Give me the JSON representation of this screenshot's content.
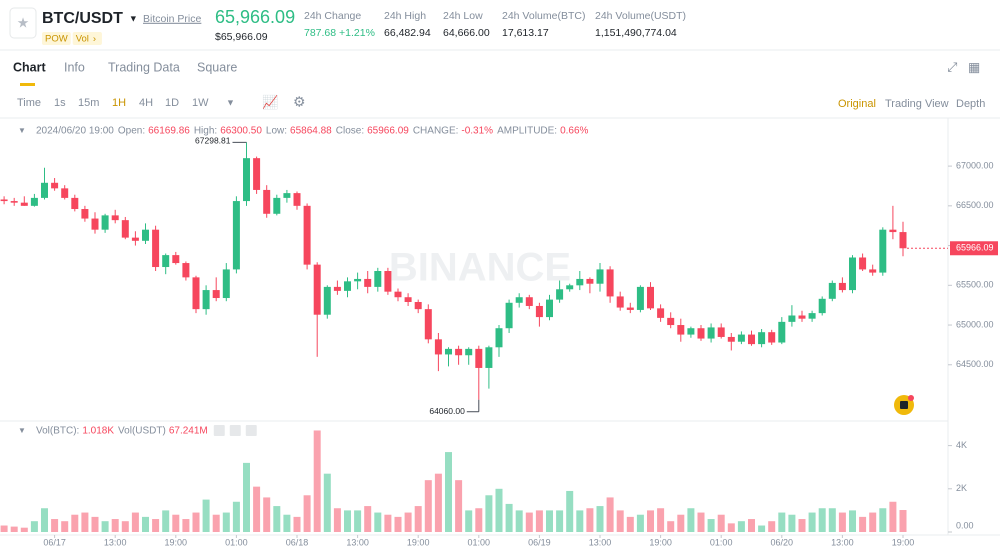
{
  "header": {
    "symbol": "BTC/USDT",
    "link": "Bitcoin Price",
    "price": "65,966.09",
    "price_usd": "$65,966.09",
    "tags": [
      "POW",
      "Vol"
    ],
    "stats": [
      {
        "label": "24h Change",
        "value": "787.68 +1.21%"
      },
      {
        "label": "24h High",
        "value": "66,482.94"
      },
      {
        "label": "24h Low",
        "value": "64,666.00"
      },
      {
        "label": "24h Volume(BTC)",
        "value": "17,613.17"
      },
      {
        "label": "24h Volume(USDT)",
        "value": "1,151,490,774.04"
      }
    ]
  },
  "tabs": [
    "Chart",
    "Info",
    "Trading Data",
    "Square"
  ],
  "toolbar": {
    "intervals": [
      "Time",
      "1s",
      "15m",
      "1H",
      "4H",
      "1D",
      "1W"
    ],
    "views": [
      "Original",
      "Trading View",
      "Depth"
    ]
  },
  "chart_data": {
    "type": "candlestick",
    "watermark": "BINANCE",
    "info": {
      "time": "2024/06/20 19:00",
      "items": [
        {
          "label": "Open:",
          "value": "66169.86"
        },
        {
          "label": "High:",
          "value": "66300.50"
        },
        {
          "label": "Low:",
          "value": "65864.88"
        },
        {
          "label": "Close:",
          "value": "65966.09"
        },
        {
          "label": "CHANGE:",
          "value": "-0.31%"
        },
        {
          "label": "AMPLITUDE:",
          "value": "0.66%"
        }
      ]
    },
    "volume_info": [
      {
        "label": "Vol(BTC):",
        "value": "1.018K"
      },
      {
        "label": "Vol(USDT)",
        "value": "67.241M"
      }
    ],
    "high_label": "67298.81",
    "low_label": "64060.00",
    "up_color": "#2ebd85",
    "down_color": "#f6465d",
    "open": [
      66580,
      66560,
      66540,
      66500,
      66600,
      66790,
      66720,
      66600,
      66460,
      66340,
      66200,
      66380,
      66320,
      66100,
      66060,
      66200,
      65730,
      65880,
      65780,
      65600,
      65200,
      65440,
      65340,
      65700,
      66560,
      67100,
      66700,
      66400,
      66600,
      66660,
      66500,
      65760,
      65130,
      65480,
      65430,
      65550,
      65580,
      65480,
      65680,
      65420,
      65350,
      65290,
      65200,
      64820,
      64630,
      64700,
      64620,
      64700,
      64460,
      64720,
      64960,
      65280,
      65350,
      65240,
      65100,
      65320,
      65450,
      65500,
      65580,
      65520,
      65700,
      65360,
      65220,
      65190,
      65480,
      65210,
      65090,
      65000,
      64880,
      64960,
      64830,
      64970,
      64850,
      64790,
      64880,
      64760,
      64910,
      64780,
      65040,
      65120,
      65080,
      65150,
      65330,
      65530,
      65440,
      65850,
      65700,
      65660,
      66200,
      66169.86
    ],
    "high": [
      66620,
      66600,
      66620,
      66650,
      66980,
      66850,
      66760,
      66640,
      66500,
      66420,
      66400,
      66450,
      66360,
      66180,
      66280,
      66250,
      65900,
      65920,
      65800,
      65620,
      65500,
      65600,
      65780,
      66620,
      67298.81,
      67120,
      66760,
      66640,
      66700,
      66680,
      66530,
      65790,
      65500,
      65560,
      65600,
      65660,
      65680,
      65720,
      65720,
      65460,
      65400,
      65320,
      65260,
      64900,
      64720,
      64740,
      64720,
      64740,
      64740,
      65000,
      65320,
      65400,
      65380,
      65280,
      65380,
      65560,
      65520,
      65680,
      65600,
      65780,
      65740,
      65420,
      65280,
      65500,
      65540,
      65260,
      65160,
      65080,
      64980,
      65000,
      65020,
      65020,
      64900,
      64920,
      64930,
      64950,
      64940,
      65100,
      65250,
      65180,
      65180,
      65360,
      65560,
      65600,
      65880,
      65900,
      65760,
      66230,
      66500,
      66300.5
    ],
    "low": [
      66520,
      66500,
      66500,
      66490,
      66580,
      66690,
      66580,
      66430,
      66300,
      66150,
      66160,
      66280,
      66080,
      66000,
      66020,
      65680,
      65640,
      65760,
      65560,
      65150,
      65130,
      65300,
      65300,
      65650,
      66500,
      66650,
      66350,
      66380,
      66540,
      66450,
      65700,
      64600,
      65080,
      65380,
      65350,
      65450,
      65400,
      65420,
      65380,
      65300,
      65240,
      65150,
      64770,
      64420,
      64480,
      64500,
      64500,
      64060,
      64200,
      64600,
      64900,
      65220,
      65200,
      64980,
      65060,
      65280,
      65420,
      65440,
      65400,
      65420,
      65280,
      65180,
      65150,
      65160,
      65190,
      65040,
      64960,
      64790,
      64840,
      64800,
      64780,
      64830,
      64680,
      64760,
      64740,
      64720,
      64750,
      64760,
      64980,
      65040,
      65040,
      65120,
      65300,
      65410,
      65400,
      65680,
      65620,
      65620,
      66080,
      65864.88
    ],
    "close": [
      66560,
      66540,
      66500,
      66600,
      66790,
      66720,
      66600,
      66460,
      66340,
      66200,
      66380,
      66320,
      66100,
      66060,
      66200,
      65730,
      65880,
      65780,
      65600,
      65200,
      65440,
      65340,
      65700,
      66560,
      67100,
      66700,
      66400,
      66600,
      66660,
      66500,
      65760,
      65130,
      65480,
      65430,
      65550,
      65580,
      65480,
      65680,
      65420,
      65350,
      65290,
      65200,
      64820,
      64630,
      64700,
      64620,
      64700,
      64460,
      64720,
      64960,
      65280,
      65350,
      65240,
      65100,
      65320,
      65450,
      65500,
      65580,
      65520,
      65700,
      65360,
      65220,
      65190,
      65480,
      65210,
      65090,
      65000,
      64880,
      64960,
      64830,
      64970,
      64850,
      64790,
      64880,
      64760,
      64910,
      64780,
      65040,
      65120,
      65080,
      65150,
      65330,
      65530,
      65440,
      65850,
      65700,
      65660,
      66200,
      66169.86,
      65966.09
    ],
    "volume": [
      300,
      250,
      200,
      500,
      1100,
      600,
      500,
      800,
      900,
      700,
      500,
      600,
      500,
      900,
      700,
      600,
      1000,
      800,
      600,
      900,
      1500,
      800,
      900,
      1400,
      3200,
      2100,
      1600,
      1200,
      800,
      700,
      1700,
      4700,
      2700,
      1100,
      1000,
      1000,
      1200,
      900,
      800,
      700,
      900,
      1200,
      2400,
      2700,
      3700,
      2400,
      1000,
      1100,
      1700,
      2000,
      1300,
      1000,
      900,
      1000,
      1000,
      1000,
      1900,
      1000,
      1100,
      1200,
      1600,
      1000,
      700,
      800,
      1000,
      1100,
      500,
      800,
      1100,
      900,
      600,
      800,
      400,
      500,
      600,
      300,
      500,
      900,
      800,
      600,
      900,
      1100,
      1100,
      900,
      1000,
      700,
      900,
      1100,
      1400,
      1018
    ],
    "ylim": [
      63805,
      67555
    ],
    "yticks": [
      {
        "value": 64500,
        "label": "64500.00"
      },
      {
        "value": 65000,
        "label": "65000.00"
      },
      {
        "value": 65500,
        "label": "65500.00"
      },
      {
        "value": 66000,
        "label": "66000.00"
      },
      {
        "value": 66500,
        "label": "66500.00"
      },
      {
        "value": 67000,
        "label": "67000.00"
      }
    ],
    "y2lim": [
      0,
      5000
    ],
    "y2ticks": [
      {
        "value": 0,
        "label": "0.00"
      },
      {
        "value": 2000,
        "label": "2K"
      },
      {
        "value": 4000,
        "label": "4K"
      }
    ],
    "xticks": [
      {
        "value": 5,
        "label": "06/17"
      },
      {
        "value": 11,
        "label": "13:00"
      },
      {
        "value": 17,
        "label": "19:00"
      },
      {
        "value": 23,
        "label": "01:00"
      },
      {
        "value": 29,
        "label": "06/18"
      },
      {
        "value": 35,
        "label": "13:00"
      },
      {
        "value": 41,
        "label": "19:00"
      },
      {
        "value": 47,
        "label": "01:00"
      },
      {
        "value": 53,
        "label": "06/19"
      },
      {
        "value": 59,
        "label": "13:00"
      },
      {
        "value": 65,
        "label": "19:00"
      },
      {
        "value": 71,
        "label": "01:00"
      },
      {
        "value": 77,
        "label": "06/20"
      },
      {
        "value": 83,
        "label": "13:00"
      },
      {
        "value": 89,
        "label": "19:00"
      }
    ]
  }
}
